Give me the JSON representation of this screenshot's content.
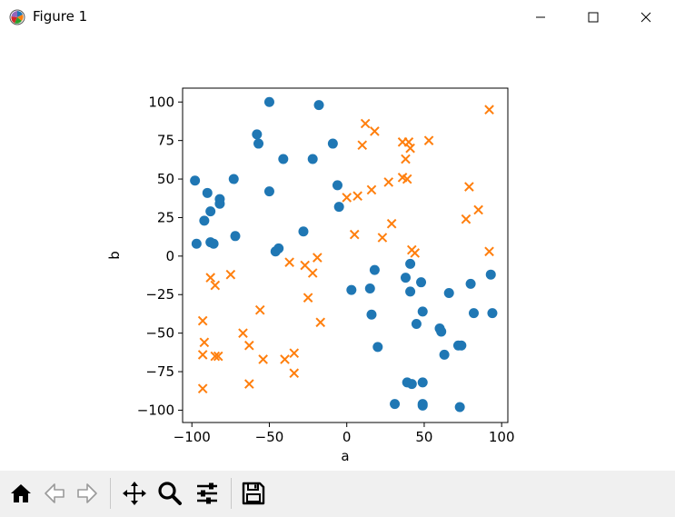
{
  "window": {
    "title": "Figure 1"
  },
  "toolbar": {
    "tools": [
      {
        "name": "home-icon"
      },
      {
        "name": "back-arrow-icon"
      },
      {
        "name": "forward-arrow-icon"
      },
      {
        "name": "pan-move-icon"
      },
      {
        "name": "zoom-magnifier-icon"
      },
      {
        "name": "configure-subplots-icon"
      },
      {
        "name": "save-floppy-icon"
      }
    ]
  },
  "colors": {
    "series_circle": "#1f77b4",
    "series_x": "#ff7f0e",
    "toolbar_bg": "#f0f0f0"
  },
  "chart_data": {
    "type": "scatter",
    "title": "",
    "xlabel": "a",
    "ylabel": "b",
    "xlim": [
      -106,
      104
    ],
    "ylim": [
      -108,
      109
    ],
    "xticks": [
      -100,
      -50,
      0,
      50,
      100
    ],
    "yticks": [
      100,
      75,
      50,
      25,
      0,
      -25,
      -50,
      -75,
      -100
    ],
    "grid": false,
    "series": [
      {
        "marker": "circle",
        "color": "#1f77b4",
        "points": [
          [
            -98,
            49
          ],
          [
            -97,
            8
          ],
          [
            -92,
            23
          ],
          [
            -90,
            41
          ],
          [
            -88,
            29
          ],
          [
            -88,
            9
          ],
          [
            -86,
            8
          ],
          [
            -82,
            37
          ],
          [
            -82,
            34
          ],
          [
            -73,
            50
          ],
          [
            -72,
            13
          ],
          [
            -58,
            79
          ],
          [
            -57,
            73
          ],
          [
            -50,
            100
          ],
          [
            -50,
            42
          ],
          [
            -46,
            3
          ],
          [
            -44,
            5
          ],
          [
            -41,
            63
          ],
          [
            -28,
            16
          ],
          [
            -22,
            63
          ],
          [
            -18,
            98
          ],
          [
            -9,
            73
          ],
          [
            -6,
            46
          ],
          [
            -5,
            32
          ],
          [
            3,
            -22
          ],
          [
            15,
            -21
          ],
          [
            16,
            -38
          ],
          [
            18,
            -9
          ],
          [
            20,
            -59
          ],
          [
            31,
            -96
          ],
          [
            38,
            -14
          ],
          [
            39,
            -82
          ],
          [
            41,
            -23
          ],
          [
            41,
            -5
          ],
          [
            42,
            -83
          ],
          [
            45,
            -44
          ],
          [
            48,
            -17
          ],
          [
            49,
            -82
          ],
          [
            49,
            -36
          ],
          [
            49,
            -97
          ],
          [
            49,
            -96
          ],
          [
            60,
            -47
          ],
          [
            61,
            -49
          ],
          [
            63,
            -64
          ],
          [
            66,
            -24
          ],
          [
            72,
            -58
          ],
          [
            74,
            -58
          ],
          [
            73,
            -98
          ],
          [
            80,
            -18
          ],
          [
            82,
            -37
          ],
          [
            93,
            -12
          ],
          [
            94,
            -37
          ]
        ]
      },
      {
        "marker": "x",
        "color": "#ff7f0e",
        "points": [
          [
            -93,
            -42
          ],
          [
            -92,
            -56
          ],
          [
            -93,
            -64
          ],
          [
            -93,
            -86
          ],
          [
            -88,
            -14
          ],
          [
            -85,
            -19
          ],
          [
            -85,
            -65
          ],
          [
            -83,
            -65
          ],
          [
            -75,
            -12
          ],
          [
            -67,
            -50
          ],
          [
            -63,
            -58
          ],
          [
            -63,
            -83
          ],
          [
            -56,
            -35
          ],
          [
            -54,
            -67
          ],
          [
            -40,
            -67
          ],
          [
            -37,
            -4
          ],
          [
            -34,
            -76
          ],
          [
            -34,
            -63
          ],
          [
            -27,
            -6
          ],
          [
            -25,
            -27
          ],
          [
            -22,
            -11
          ],
          [
            -19,
            -1
          ],
          [
            -17,
            -43
          ],
          [
            0,
            38
          ],
          [
            5,
            14
          ],
          [
            7,
            39
          ],
          [
            10,
            72
          ],
          [
            12,
            86
          ],
          [
            16,
            43
          ],
          [
            18,
            81
          ],
          [
            23,
            12
          ],
          [
            27,
            48
          ],
          [
            29,
            21
          ],
          [
            36,
            74
          ],
          [
            36,
            51
          ],
          [
            38,
            63
          ],
          [
            39,
            50
          ],
          [
            40,
            74
          ],
          [
            41,
            70
          ],
          [
            42,
            4
          ],
          [
            44,
            2
          ],
          [
            53,
            75
          ],
          [
            77,
            24
          ],
          [
            79,
            45
          ],
          [
            85,
            30
          ],
          [
            92,
            3
          ],
          [
            92,
            95
          ]
        ]
      }
    ]
  }
}
